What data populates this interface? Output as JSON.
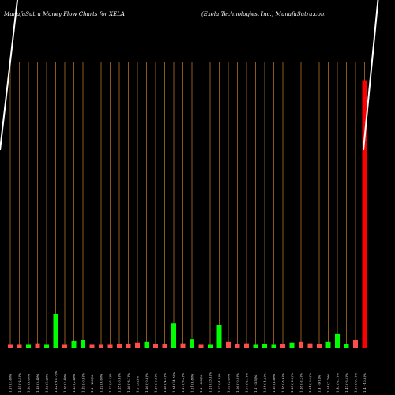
{
  "chart_data": {
    "type": "bar",
    "title_left": "MunafaSutra  Money Flow  Charts for XELA",
    "title_right": "(Exela  Technologies,  Inc.) MunafaSutra.com",
    "categories": [
      "1.17 (1.6)%",
      "1.15 (-2.5)%",
      "1.18 (0.0)%",
      "1.18 (4.4)%",
      "1.13 (1.2)%",
      "1.12 (-11.7)%",
      "1.26 (2.4)%",
      "1.23 (3.4)%",
      "1.19 (-0.8)%",
      "1.2 (-2.0)%",
      "1.22 (0.0)%",
      "1.22 (-2.4)%",
      "1.25 (-0.8)%",
      "1.26 (-3.1)%",
      "1.3 (3.2)%",
      "1.26 (-0.8)%",
      "1.27 (-0.8)%",
      "1.28 (-4.5)%",
      "1.34 (14.5)%",
      "1.17 (-3.3)%",
      "1.21 (0.8)%",
      "1.2 (-0.8)%",
      "1.21 (13.1)%",
      "1.07 (-1.8)%",
      "1.09 (2.8)%",
      "1.06 (-0.9)%",
      "1.07 (-2.7)%",
      "1.1 (-3.5)%",
      "1.14 (-4.2)%",
      "1.19 (0.8)%",
      "1.18 (-5.6)%",
      "1.25 (-2.3)%",
      "1.28 (-2.3)%",
      "1.31 (-6.4)%",
      "1.4 (-9.1)%",
      "1.54 (7.7)%",
      "1.43 (-2.7)%",
      "1.47 (-6.4)%",
      "1.57 (-5.7)%"
    ],
    "series": [
      {
        "values": [
          2.5,
          2.5,
          2.5,
          3.5,
          2.5,
          24,
          2.5,
          5,
          6,
          2.5,
          2.5,
          2.5,
          3,
          3,
          4,
          4.5,
          3,
          3,
          17.5,
          3.5,
          6.5,
          2.5,
          2.5,
          16,
          4.5,
          3,
          3.5,
          2.5,
          3,
          2.5,
          3,
          4,
          4.5,
          3.5,
          3,
          4.5,
          10,
          3,
          5.5
        ],
        "colors": [
          "#ff4d4d",
          "#ff4d4d",
          "#00ff00",
          "#ff4d4d",
          "#00ff00",
          "#00ff00",
          "#ff4d4d",
          "#00ff00",
          "#00ff00",
          "#ff4d4d",
          "#ff4d4d",
          "#ff4d4d",
          "#ff4d4d",
          "#ff4d4d",
          "#ff4d4d",
          "#00ff00",
          "#ff4d4d",
          "#ff4d4d",
          "#00ff00",
          "#ff4d4d",
          "#00ff00",
          "#ff4d4d",
          "#00ff00",
          "#00ff00",
          "#ff4d4d",
          "#ff4d4d",
          "#ff4d4d",
          "#00ff00",
          "#00ff00",
          "#00ff00",
          "#ff4d4d",
          "#00ff00",
          "#ff4d4d",
          "#ff4d4d",
          "#ff4d4d",
          "#00ff00",
          "#00ff00",
          "#00ff00",
          "#ff4d4d"
        ]
      }
    ],
    "last_bar": {
      "label": "1.4 (-10.8)%",
      "value": 187,
      "color": "#ff0000"
    },
    "price_line": [
      1.04,
      1.09
    ],
    "grid": true,
    "ylim": [
      0,
      200
    ],
    "colors": {
      "background": "#000000",
      "grid": "#8b5a1a",
      "text": "#ffffff"
    }
  }
}
